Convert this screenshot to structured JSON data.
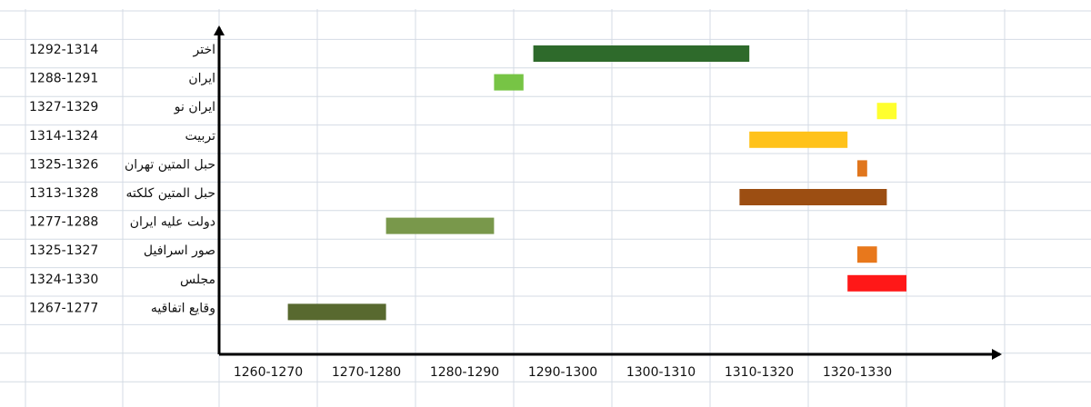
{
  "chart_data": {
    "type": "gantt",
    "categories": [
      "اختر",
      "ایران",
      "ایران نو",
      "تربیت",
      "حبل المتین تهران",
      "حبل المتین کلکته",
      "دولت علیه ایران",
      "صور اسرافیل",
      "مجلس",
      "وقایع اتفاقیه"
    ],
    "starts": [
      1292,
      1288,
      1327,
      1314,
      1325,
      1313,
      1277,
      1325,
      1324,
      1267
    ],
    "ends": [
      1314,
      1291,
      1329,
      1324,
      1326,
      1328,
      1288,
      1327,
      1330,
      1277
    ],
    "value_labels": [
      "1292-1314",
      "1288-1291",
      "1327-1329",
      "1314-1324",
      "1325-1326",
      "1313-1328",
      "1277-1288",
      "1325-1327",
      "1324-1330",
      "1267-1277"
    ],
    "colors": [
      "#2e6a2b",
      "#77c445",
      "#ffff2e",
      "#ffc21a",
      "#e0761d",
      "#9c4e12",
      "#79984b",
      "#e8781c",
      "#ff1818",
      "#58692f"
    ],
    "xlim": [
      1260,
      1330
    ],
    "xticks": [
      {
        "value": 1265,
        "label": "1260-1270"
      },
      {
        "value": 1275,
        "label": "1270-1280"
      },
      {
        "value": 1285,
        "label": "1280-1290"
      },
      {
        "value": 1295,
        "label": "1290-1300"
      },
      {
        "value": 1305,
        "label": "1300-1310"
      },
      {
        "value": 1315,
        "label": "1310-1320"
      },
      {
        "value": 1325,
        "label": "1320-1330"
      }
    ]
  }
}
